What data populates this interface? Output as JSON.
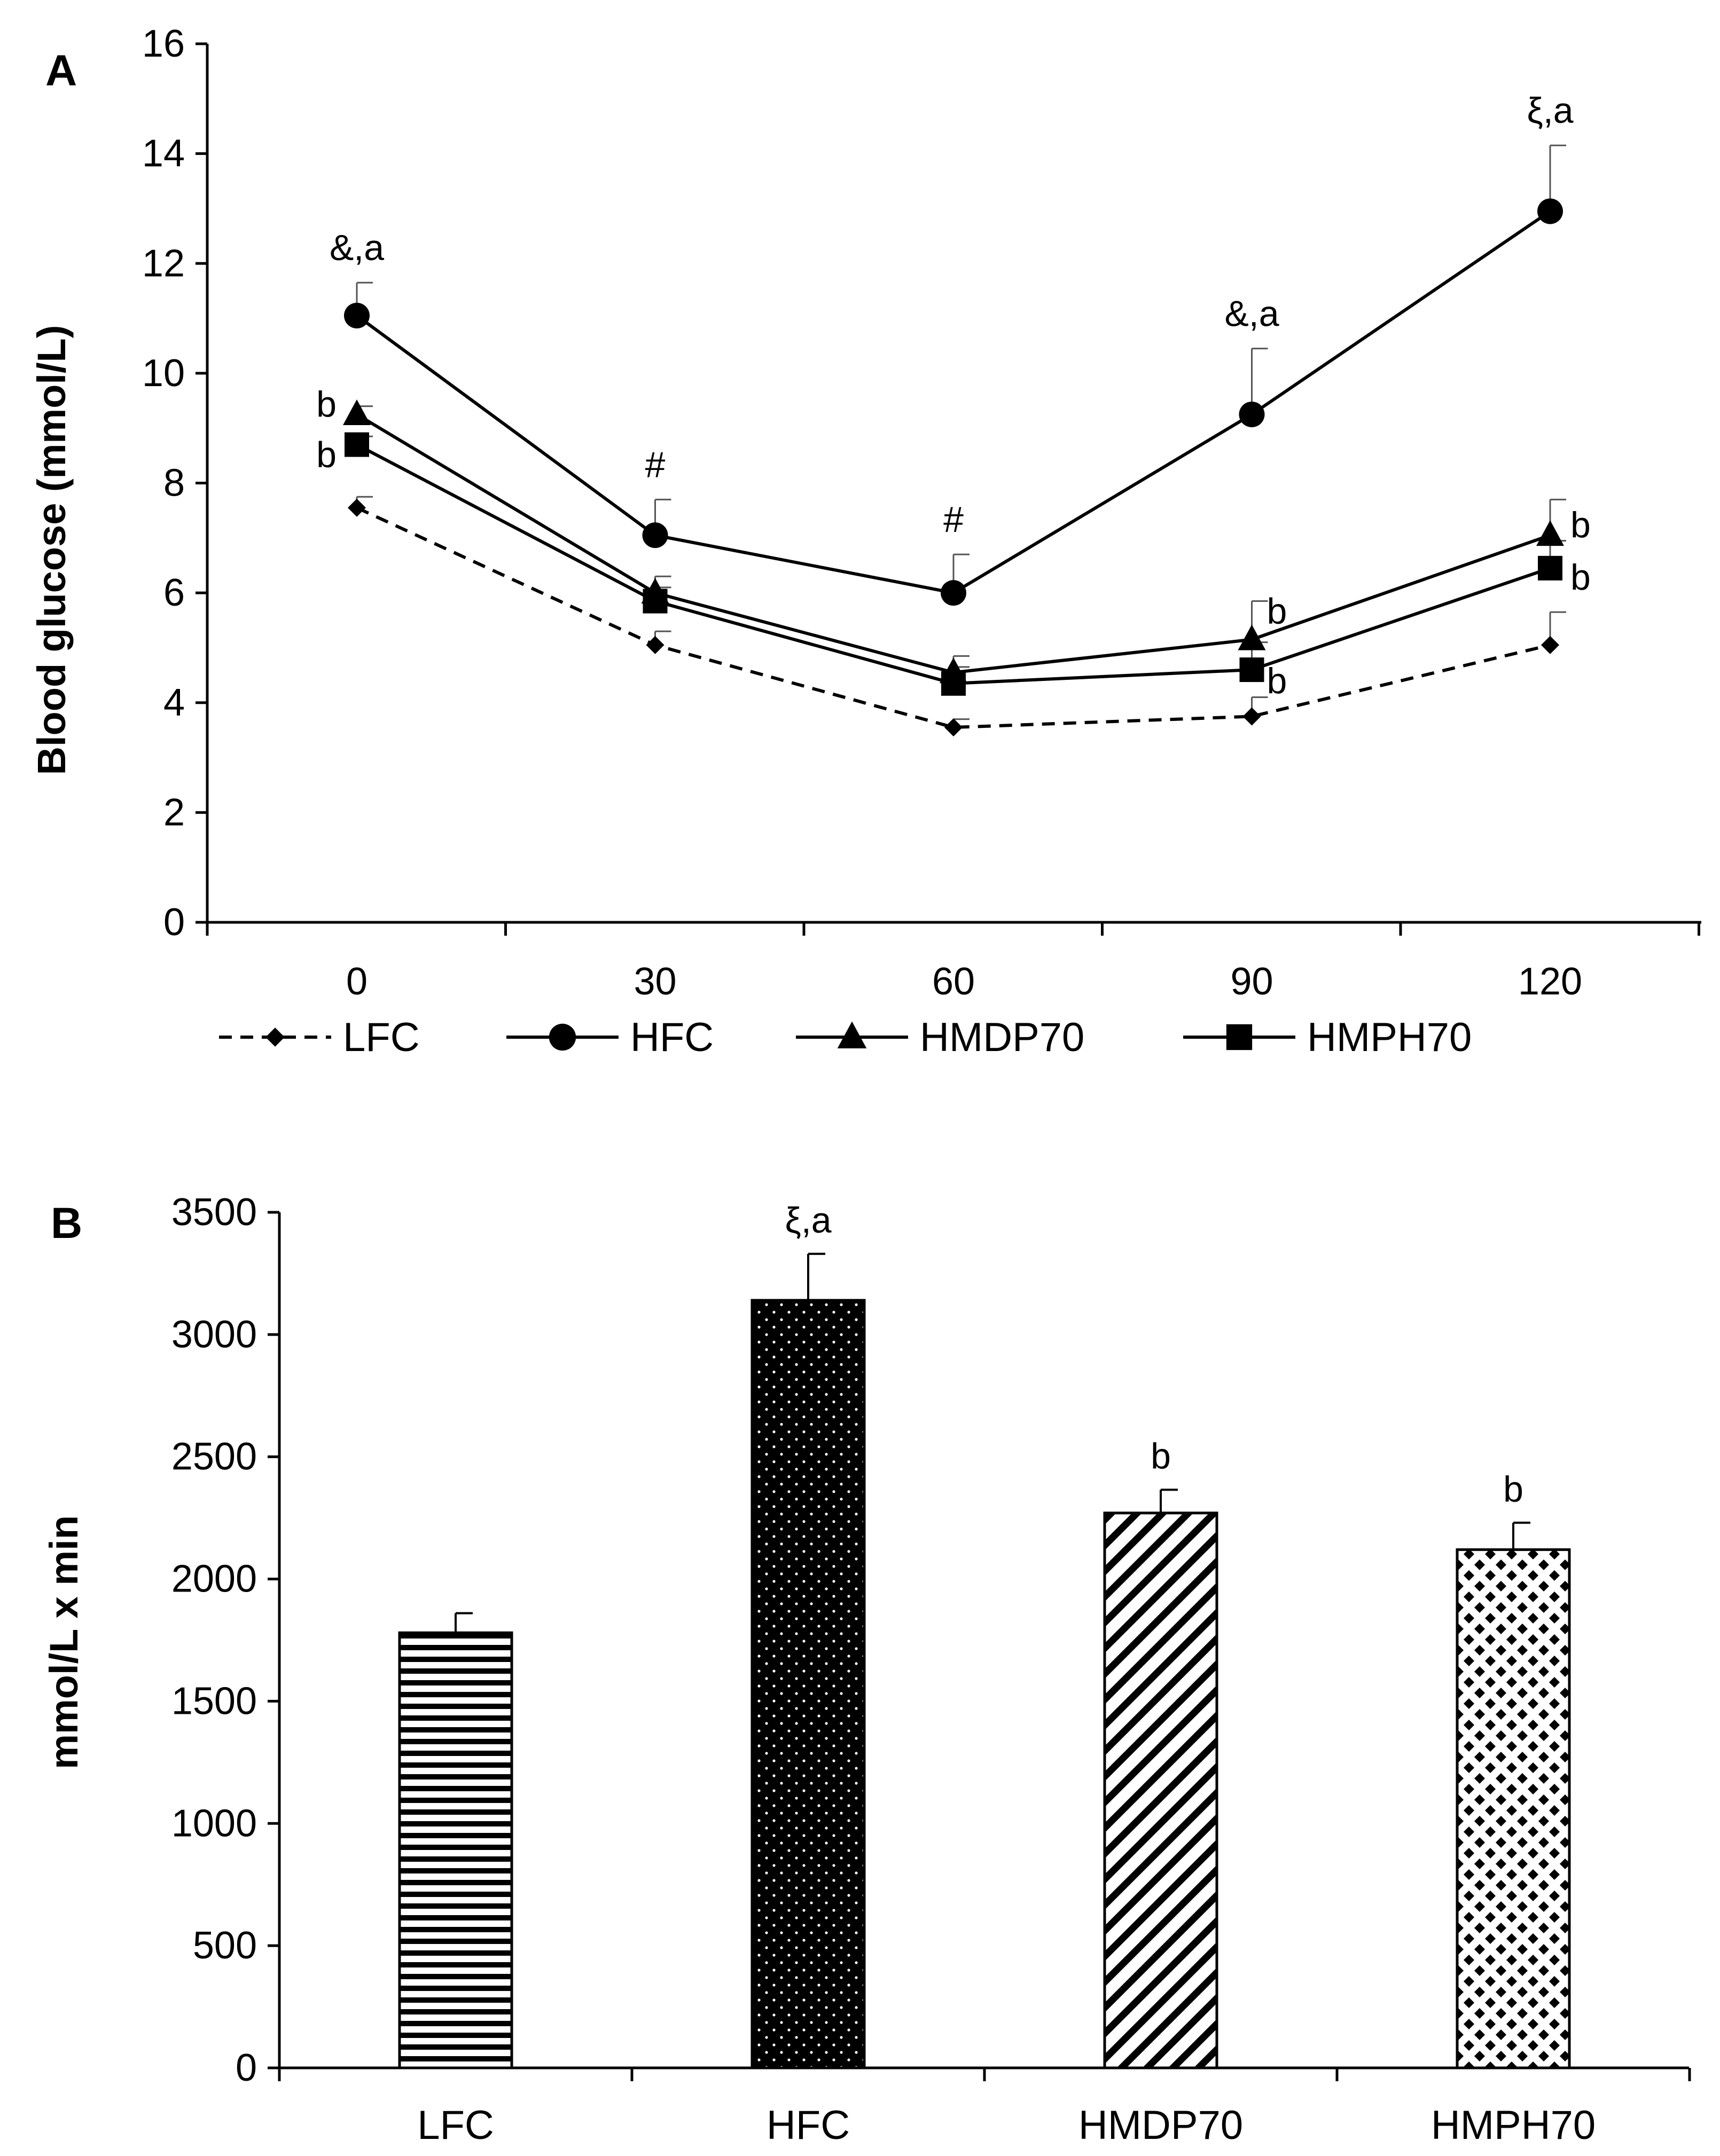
{
  "chart_data": [
    {
      "type": "line",
      "panel_label": "A",
      "ylabel": "Blood glucose (mmol/L)",
      "xlabel": "",
      "x": [
        0,
        30,
        60,
        90,
        120
      ],
      "x_tick_labels": [
        "0",
        "30",
        "60",
        "90",
        "120"
      ],
      "ylim": [
        0,
        16
      ],
      "y_ticks": [
        0,
        2,
        4,
        6,
        8,
        10,
        12,
        14,
        16
      ],
      "y_tick_labels": [
        "0",
        "2",
        "4",
        "6",
        "8",
        "10",
        "12",
        "14",
        "16"
      ],
      "grid": false,
      "legend_position": "bottom",
      "series": [
        {
          "name": "LFC",
          "marker": "diamond",
          "dashed": true,
          "values": [
            7.55,
            5.05,
            3.55,
            3.75,
            5.05
          ],
          "errors": [
            0.2,
            0.25,
            0.15,
            0.35,
            0.6
          ],
          "annotations": [
            "",
            "",
            "",
            "",
            ""
          ]
        },
        {
          "name": "HFC",
          "marker": "circle",
          "dashed": false,
          "values": [
            11.05,
            7.05,
            6.0,
            9.25,
            12.95
          ],
          "errors": [
            0.6,
            0.65,
            0.7,
            1.2,
            1.2
          ],
          "annotations": [
            "&,a",
            "#",
            "#",
            "&,a",
            "ξ,a"
          ]
        },
        {
          "name": "HMDP70",
          "marker": "triangle",
          "dashed": false,
          "values": [
            9.25,
            6.0,
            4.55,
            5.15,
            7.05
          ],
          "errors": [
            0.15,
            0.3,
            0.3,
            0.7,
            0.65
          ],
          "annotations": [
            "b",
            "",
            "",
            "b",
            "b"
          ]
        },
        {
          "name": "HMPH70",
          "marker": "square",
          "dashed": false,
          "values": [
            8.7,
            5.85,
            4.35,
            4.6,
            6.45
          ],
          "errors": [
            0.15,
            0.25,
            0.3,
            0.5,
            0.5
          ],
          "annotations": [
            "b",
            "",
            "",
            "b",
            "b"
          ]
        }
      ]
    },
    {
      "type": "bar",
      "panel_label": "B",
      "ylabel": "mmol/L x min",
      "xlabel": "",
      "categories": [
        "LFC",
        "HFC",
        "HMDP70",
        "HMPH70"
      ],
      "values": [
        1780,
        3140,
        2270,
        2120
      ],
      "errors": [
        80,
        190,
        95,
        110
      ],
      "annotations": [
        "",
        "ξ,a",
        "b",
        "b"
      ],
      "patterns": [
        "horizontal-stripes",
        "dense-dots",
        "diagonal-stripes",
        "diamond-checker"
      ],
      "ylim": [
        0,
        3500
      ],
      "y_ticks": [
        0,
        500,
        1000,
        1500,
        2000,
        2500,
        3000,
        3500
      ],
      "y_tick_labels": [
        "0",
        "500",
        "1000",
        "1500",
        "2000",
        "2500",
        "3000",
        "3500"
      ],
      "grid": false
    }
  ]
}
